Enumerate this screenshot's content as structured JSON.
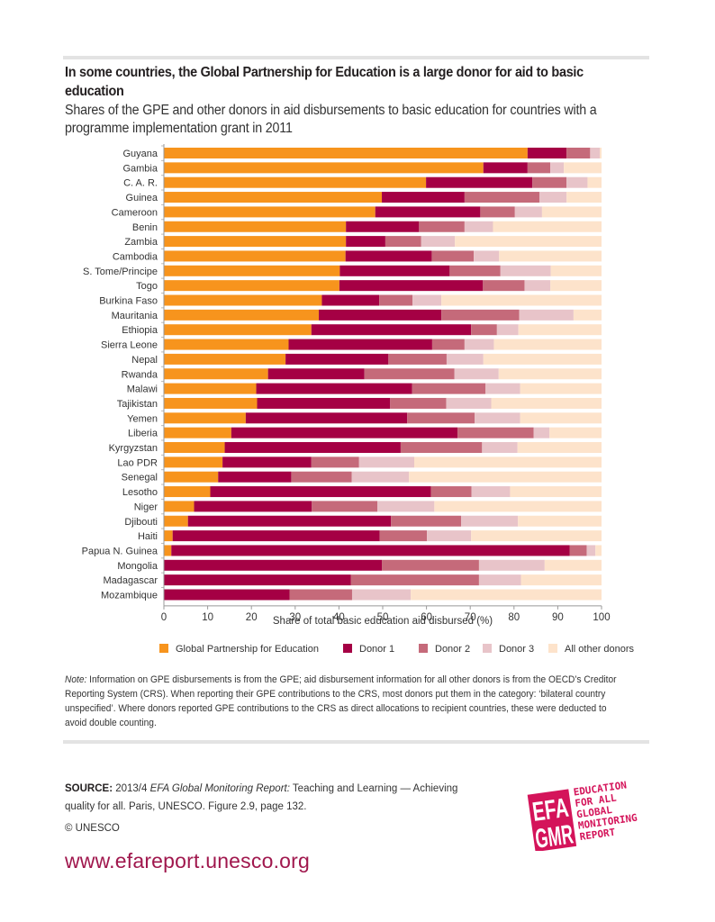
{
  "header": {
    "title": "In some countries, the Global Partnership for Education is a large donor for aid to basic education",
    "subtitle": "Shares of the GPE and other donors in aid disbursements to basic education for countries with a programme implementation grant in 2011"
  },
  "colors": {
    "gpe": "#F7941D",
    "donor1": "#A50044",
    "donor2": "#C56A7A",
    "donor3": "#E8C4C9",
    "other": "#FDE3CB",
    "brand": "#A0174D",
    "logo": "#D4145A"
  },
  "chart_data": {
    "type": "bar",
    "orientation": "horizontal",
    "stacked": true,
    "title": "In some countries, the Global Partnership for Education is a large donor for aid to basic education",
    "subtitle": "Shares of the GPE and other donors in aid disbursements to basic education for countries with a programme implementation grant in 2011",
    "xlabel": "Share of total basic education aid disbursed (%)",
    "ylabel": "",
    "xlim": [
      0,
      100
    ],
    "xticks": [
      0,
      10,
      20,
      30,
      40,
      50,
      60,
      70,
      80,
      90,
      100
    ],
    "grid": false,
    "legend_position": "bottom",
    "categories": [
      "Guyana",
      "Gambia",
      "C. A. R.",
      "Guinea",
      "Cameroon",
      "Benin",
      "Zambia",
      "Cambodia",
      "S. Tome/Principe",
      "Togo",
      "Burkina Faso",
      "Mauritania",
      "Ethiopia",
      "Sierra Leone",
      "Nepal",
      "Rwanda",
      "Malawi",
      "Tajikistan",
      "Yemen",
      "Liberia",
      "Kyrgyzstan",
      "Lao PDR",
      "Senegal",
      "Lesotho",
      "Niger",
      "Djibouti",
      "Haiti",
      "Papua N. Guinea",
      "Mongolia",
      "Madagascar",
      "Mozambique"
    ],
    "series": [
      {
        "name": "Global Partnership for Education",
        "key": "gpe",
        "values": [
          83.1,
          73.0,
          59.9,
          49.8,
          48.3,
          41.6,
          41.6,
          41.5,
          40.2,
          40.1,
          36.1,
          35.4,
          33.7,
          28.5,
          27.8,
          23.8,
          21.1,
          21.3,
          18.7,
          15.4,
          13.9,
          13.4,
          12.4,
          10.6,
          6.9,
          5.5,
          2.0,
          1.7,
          0,
          0,
          0
        ]
      },
      {
        "name": "Donor 1",
        "key": "donor1",
        "values": [
          8.9,
          10.1,
          24.3,
          18.9,
          24.0,
          16.7,
          9.0,
          19.7,
          25.1,
          32.8,
          13.1,
          28.0,
          36.5,
          32.8,
          23.5,
          22.0,
          35.6,
          30.4,
          36.9,
          51.7,
          40.2,
          20.3,
          16.7,
          50.4,
          26.9,
          46.4,
          47.3,
          91.0,
          49.8,
          42.7,
          28.7
        ]
      },
      {
        "name": "Donor 2",
        "key": "donor2",
        "values": [
          5.4,
          5.2,
          7.8,
          17.1,
          7.9,
          10.4,
          8.2,
          9.6,
          11.6,
          9.5,
          7.6,
          17.8,
          5.9,
          7.4,
          13.3,
          20.6,
          16.8,
          12.8,
          15.4,
          17.4,
          18.6,
          10.9,
          13.8,
          9.3,
          15.0,
          16.0,
          10.8,
          3.9,
          22.2,
          29.3,
          14.3
        ]
      },
      {
        "name": "Donor 3",
        "key": "donor3",
        "values": [
          2.2,
          3.1,
          4.8,
          6.2,
          6.2,
          6.5,
          7.7,
          5.8,
          11.5,
          5.9,
          6.6,
          12.4,
          4.9,
          6.7,
          8.4,
          10.1,
          7.9,
          10.3,
          10.4,
          3.6,
          8.1,
          12.6,
          13.1,
          8.8,
          13.0,
          13.0,
          10.1,
          2.0,
          15.0,
          9.6,
          13.4
        ]
      },
      {
        "name": "All other donors",
        "key": "other",
        "values": [
          0.4,
          8.6,
          3.2,
          8.0,
          13.6,
          24.8,
          33.5,
          23.4,
          11.6,
          11.7,
          36.6,
          6.4,
          19.0,
          24.6,
          27.0,
          23.5,
          18.6,
          25.2,
          18.6,
          11.9,
          19.2,
          42.8,
          44.0,
          20.9,
          38.2,
          19.1,
          29.8,
          1.4,
          13.0,
          18.4,
          43.6
        ]
      }
    ]
  },
  "legend": {
    "items": [
      {
        "label": "Global Partnership for Education",
        "key": "gpe"
      },
      {
        "label": "Donor 1",
        "key": "donor1"
      },
      {
        "label": "Donor 2",
        "key": "donor2"
      },
      {
        "label": "Donor 3",
        "key": "donor3"
      },
      {
        "label": "All other donors",
        "key": "other"
      }
    ]
  },
  "note": {
    "label": "Note:",
    "text": " Information on GPE disbursements is from the GPE; aid disbursement information for all other donors is from the OECD’s Creditor Reporting System (CRS). When reporting their GPE contributions to the CRS, most donors put them in the category: ‘bilateral country unspecified’. Where donors reported GPE contributions to the CRS as direct allocations to recipient countries, these were deducted to avoid double counting."
  },
  "footer": {
    "source_label": "SOURCE:",
    "source_pre": " 2013/4 ",
    "source_italic": "EFA Global Monitoring Report:",
    "source_post": " Teaching and Learning — Achieving quality for all. Paris, UNESCO. Figure 2.9, page 132.",
    "copyright": "© UNESCO",
    "url": "www.efareport.unesco.org",
    "logo": {
      "big_letters_top": "EFA",
      "big_letters_bottom": "GMR",
      "lines": [
        "EDUCATION",
        "FOR ALL",
        "GLOBAL",
        "MONITORING",
        "REPORT"
      ]
    }
  }
}
